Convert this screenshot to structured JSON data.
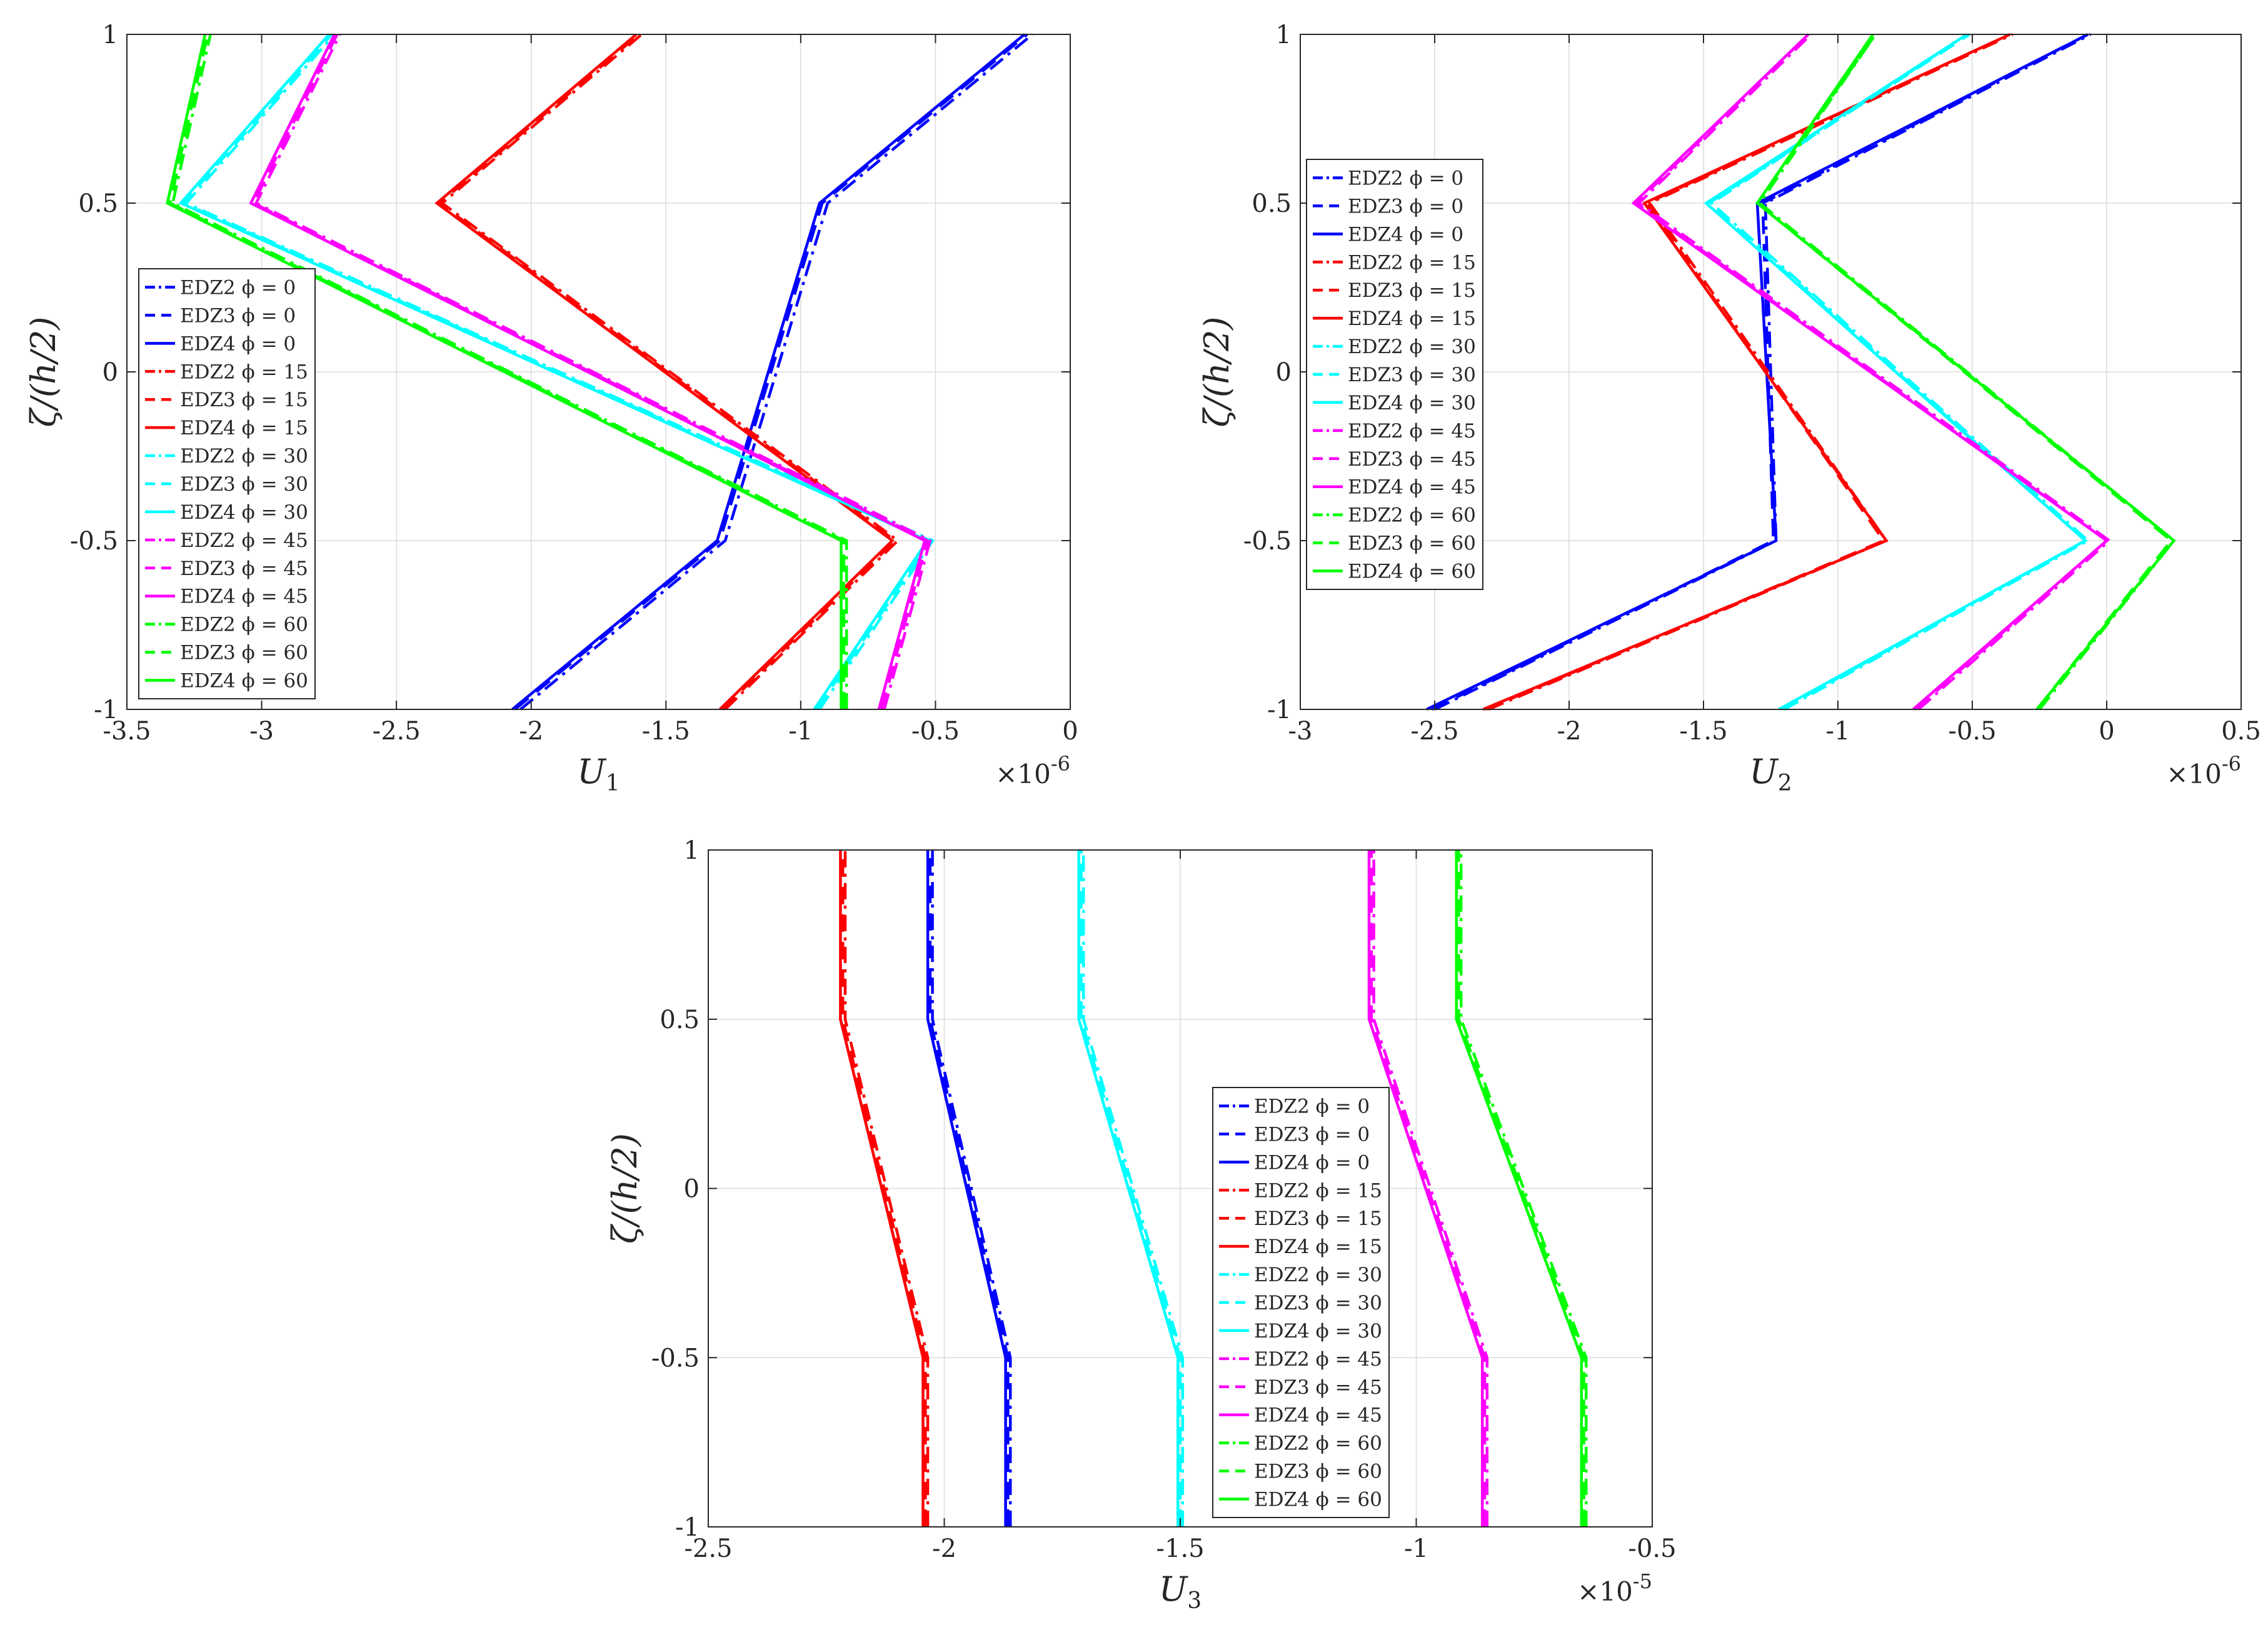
{
  "chart_data": [
    {
      "type": "line",
      "xlabel": "U",
      "xlabel_sub": "1",
      "ylabel": "ζ/(h/2)",
      "multiplier": "×10",
      "multiplier_exp": "-6",
      "xlim": [
        -3.5,
        0
      ],
      "ylim": [
        -1,
        1
      ],
      "xticks": [
        -3.5,
        -3,
        -2.5,
        -2,
        -1.5,
        -1,
        -0.5,
        0
      ],
      "xtick_labels": [
        "-3.5",
        "-3",
        "-2.5",
        "-2",
        "-1.5",
        "-1",
        "-0.5",
        "0"
      ],
      "yticks": [
        -1,
        -0.5,
        0,
        0.5,
        1
      ],
      "ytick_labels": [
        "-1",
        "-0.5",
        "0",
        "0.5",
        "1"
      ],
      "legend_position": "middle-left",
      "series": [
        {
          "name": "EDZ2 ϕ = 0",
          "color": "#0000ff",
          "dash": "dashdot",
          "x": [
            -2.04,
            -1.28,
            -0.9,
            -0.14
          ],
          "y": [
            -1,
            -0.5,
            0.5,
            1
          ]
        },
        {
          "name": "EDZ3 ϕ = 0",
          "color": "#0000ff",
          "dash": "dash",
          "x": [
            -2.06,
            -1.3,
            -0.92,
            -0.16
          ],
          "y": [
            -1,
            -0.5,
            0.5,
            1
          ]
        },
        {
          "name": "EDZ4 ϕ = 0",
          "color": "#0000ff",
          "dash": "solid",
          "x": [
            -2.07,
            -1.31,
            -0.93,
            -0.17
          ],
          "y": [
            -1,
            -0.5,
            0.5,
            1
          ]
        },
        {
          "name": "EDZ2 ϕ = 15",
          "color": "#ff0000",
          "dash": "dashdot",
          "x": [
            -1.28,
            -0.64,
            -2.33,
            -1.59
          ],
          "y": [
            -1,
            -0.5,
            0.5,
            1
          ]
        },
        {
          "name": "EDZ3 ϕ = 15",
          "color": "#ff0000",
          "dash": "dash",
          "x": [
            -1.29,
            -0.65,
            -2.34,
            -1.6
          ],
          "y": [
            -1,
            -0.5,
            0.5,
            1
          ]
        },
        {
          "name": "EDZ4 ϕ = 15",
          "color": "#ff0000",
          "dash": "solid",
          "x": [
            -1.3,
            -0.66,
            -2.35,
            -1.61
          ],
          "y": [
            -1,
            -0.5,
            0.5,
            1
          ]
        },
        {
          "name": "EDZ2 ϕ = 30",
          "color": "#00ffff",
          "dash": "dashdot",
          "x": [
            -0.93,
            -0.51,
            -3.28,
            -2.73
          ],
          "y": [
            -1,
            -0.5,
            0.5,
            1
          ]
        },
        {
          "name": "EDZ3 ϕ = 30",
          "color": "#00ffff",
          "dash": "dash",
          "x": [
            -0.94,
            -0.52,
            -3.29,
            -2.74
          ],
          "y": [
            -1,
            -0.5,
            0.5,
            1
          ]
        },
        {
          "name": "EDZ4 ϕ = 30",
          "color": "#00ffff",
          "dash": "solid",
          "x": [
            -0.95,
            -0.53,
            -3.3,
            -2.75
          ],
          "y": [
            -1,
            -0.5,
            0.5,
            1
          ]
        },
        {
          "name": "EDZ2 ϕ = 45",
          "color": "#ff00ff",
          "dash": "dashdot",
          "x": [
            -0.69,
            -0.52,
            -3.02,
            -2.71
          ],
          "y": [
            -1,
            -0.5,
            0.5,
            1
          ]
        },
        {
          "name": "EDZ3 ϕ = 45",
          "color": "#ff00ff",
          "dash": "dash",
          "x": [
            -0.7,
            -0.53,
            -3.03,
            -2.72
          ],
          "y": [
            -1,
            -0.5,
            0.5,
            1
          ]
        },
        {
          "name": "EDZ4 ϕ = 45",
          "color": "#ff00ff",
          "dash": "solid",
          "x": [
            -0.71,
            -0.54,
            -3.04,
            -2.73
          ],
          "y": [
            -1,
            -0.5,
            0.5,
            1
          ]
        },
        {
          "name": "EDZ2 ϕ = 60",
          "color": "#00ff00",
          "dash": "dashdot",
          "x": [
            -0.83,
            -0.83,
            -3.33,
            -3.19
          ],
          "y": [
            -1,
            -0.5,
            0.5,
            1
          ]
        },
        {
          "name": "EDZ3 ϕ = 60",
          "color": "#00ff00",
          "dash": "dash",
          "x": [
            -0.84,
            -0.84,
            -3.34,
            -3.2
          ],
          "y": [
            -1,
            -0.5,
            0.5,
            1
          ]
        },
        {
          "name": "EDZ4 ϕ = 60",
          "color": "#00ff00",
          "dash": "solid",
          "x": [
            -0.85,
            -0.85,
            -3.35,
            -3.21
          ],
          "y": [
            -1,
            -0.5,
            0.5,
            1
          ]
        }
      ]
    },
    {
      "type": "line",
      "xlabel": "U",
      "xlabel_sub": "2",
      "ylabel": "ζ/(h/2)",
      "multiplier": "×10",
      "multiplier_exp": "-6",
      "xlim": [
        -3,
        0.5
      ],
      "ylim": [
        -1,
        1
      ],
      "xticks": [
        -3,
        -2.5,
        -2,
        -1.5,
        -1,
        -0.5,
        0,
        0.5
      ],
      "xtick_labels": [
        "-3",
        "-2.5",
        "-2",
        "-1.5",
        "-1",
        "-0.5",
        "0",
        "0.5"
      ],
      "yticks": [
        -1,
        -0.5,
        0,
        0.5,
        1
      ],
      "ytick_labels": [
        "-1",
        "-0.5",
        "0",
        "0.5",
        "1"
      ],
      "legend_position": "top-left",
      "series": [
        {
          "name": "EDZ2 ϕ = 0",
          "color": "#0000ff",
          "dash": "dashdot",
          "x": [
            -2.5,
            -1.23,
            -1.27,
            -0.06
          ],
          "y": [
            -1,
            -0.5,
            0.5,
            1
          ]
        },
        {
          "name": "EDZ3 ϕ = 0",
          "color": "#0000ff",
          "dash": "dash",
          "x": [
            -2.51,
            -1.24,
            -1.28,
            -0.07
          ],
          "y": [
            -1,
            -0.5,
            0.5,
            1
          ]
        },
        {
          "name": "EDZ4 ϕ = 0",
          "color": "#0000ff",
          "dash": "solid",
          "x": [
            -2.53,
            -1.23,
            -1.3,
            -0.07
          ],
          "y": [
            -1,
            -0.5,
            0.5,
            1
          ]
        },
        {
          "name": "EDZ2 ϕ = 15",
          "color": "#ff0000",
          "dash": "dashdot",
          "x": [
            -2.3,
            -0.82,
            -1.7,
            -0.35
          ],
          "y": [
            -1,
            -0.5,
            0.5,
            1
          ]
        },
        {
          "name": "EDZ3 ϕ = 15",
          "color": "#ff0000",
          "dash": "dash",
          "x": [
            -2.31,
            -0.83,
            -1.71,
            -0.36
          ],
          "y": [
            -1,
            -0.5,
            0.5,
            1
          ]
        },
        {
          "name": "EDZ4 ϕ = 15",
          "color": "#ff0000",
          "dash": "solid",
          "x": [
            -2.32,
            -0.82,
            -1.72,
            -0.36
          ],
          "y": [
            -1,
            -0.5,
            0.5,
            1
          ]
        },
        {
          "name": "EDZ2 ϕ = 30",
          "color": "#00ffff",
          "dash": "dashdot",
          "x": [
            -1.2,
            -0.07,
            -1.47,
            -0.52
          ],
          "y": [
            -1,
            -0.5,
            0.5,
            1
          ]
        },
        {
          "name": "EDZ3 ϕ = 30",
          "color": "#00ffff",
          "dash": "dash",
          "x": [
            -1.21,
            -0.08,
            -1.48,
            -0.51
          ],
          "y": [
            -1,
            -0.5,
            0.5,
            1
          ]
        },
        {
          "name": "EDZ4 ϕ = 30",
          "color": "#00ffff",
          "dash": "solid",
          "x": [
            -1.22,
            -0.08,
            -1.49,
            -0.52
          ],
          "y": [
            -1,
            -0.5,
            0.5,
            1
          ]
        },
        {
          "name": "EDZ2 ϕ = 45",
          "color": "#ff00ff",
          "dash": "dashdot",
          "x": [
            -0.7,
            0.01,
            -1.74,
            -1.1
          ],
          "y": [
            -1,
            -0.5,
            0.5,
            1
          ]
        },
        {
          "name": "EDZ3 ϕ = 45",
          "color": "#ff00ff",
          "dash": "dash",
          "x": [
            -0.71,
            0.0,
            -1.75,
            -1.11
          ],
          "y": [
            -1,
            -0.5,
            0.5,
            1
          ]
        },
        {
          "name": "EDZ4 ϕ = 45",
          "color": "#ff00ff",
          "dash": "solid",
          "x": [
            -0.72,
            0.0,
            -1.76,
            -1.11
          ],
          "y": [
            -1,
            -0.5,
            0.5,
            1
          ]
        },
        {
          "name": "EDZ2 ϕ = 60",
          "color": "#00ff00",
          "dash": "dashdot",
          "x": [
            -0.25,
            0.25,
            -1.29,
            -0.86
          ],
          "y": [
            -1,
            -0.5,
            0.5,
            1
          ]
        },
        {
          "name": "EDZ3 ϕ = 60",
          "color": "#00ff00",
          "dash": "dash",
          "x": [
            -0.26,
            0.24,
            -1.3,
            -0.86
          ],
          "y": [
            -1,
            -0.5,
            0.5,
            1
          ]
        },
        {
          "name": "EDZ4 ϕ = 60",
          "color": "#00ff00",
          "dash": "solid",
          "x": [
            -0.26,
            0.25,
            -1.3,
            -0.87
          ],
          "y": [
            -1,
            -0.5,
            0.5,
            1
          ]
        }
      ]
    },
    {
      "type": "line",
      "xlabel": "U",
      "xlabel_sub": "3",
      "ylabel": "ζ/(h/2)",
      "multiplier": "×10",
      "multiplier_exp": "-5",
      "xlim": [
        -2.5,
        -0.5
      ],
      "ylim": [
        -1,
        1
      ],
      "xticks": [
        -2.5,
        -2,
        -1.5,
        -1,
        -0.5
      ],
      "xtick_labels": [
        "-2.5",
        "-2",
        "-1.5",
        "-1",
        "-0.5"
      ],
      "yticks": [
        -1,
        -0.5,
        0,
        0.5,
        1
      ],
      "ytick_labels": [
        "-1",
        "-0.5",
        "0",
        "0.5",
        "1"
      ],
      "legend_position": "center",
      "series": [
        {
          "name": "EDZ2 ϕ = 0",
          "color": "#0000ff",
          "dash": "dashdot",
          "x": [
            -1.86,
            -1.86,
            -2.025,
            -2.025
          ],
          "y": [
            -1,
            -0.5,
            0.5,
            1
          ]
        },
        {
          "name": "EDZ3 ϕ = 0",
          "color": "#0000ff",
          "dash": "dash",
          "x": [
            -1.865,
            -1.865,
            -2.03,
            -2.03
          ],
          "y": [
            -1,
            -0.5,
            0.5,
            1
          ]
        },
        {
          "name": "EDZ4 ϕ = 0",
          "color": "#0000ff",
          "dash": "solid",
          "x": [
            -1.87,
            -1.87,
            -2.035,
            -2.035
          ],
          "y": [
            -1,
            -0.5,
            0.5,
            1
          ]
        },
        {
          "name": "EDZ2 ϕ = 15",
          "color": "#ff0000",
          "dash": "dashdot",
          "x": [
            -2.035,
            -2.035,
            -2.21,
            -2.21
          ],
          "y": [
            -1,
            -0.5,
            0.5,
            1
          ]
        },
        {
          "name": "EDZ3 ϕ = 15",
          "color": "#ff0000",
          "dash": "dash",
          "x": [
            -2.04,
            -2.04,
            -2.215,
            -2.215
          ],
          "y": [
            -1,
            -0.5,
            0.5,
            1
          ]
        },
        {
          "name": "EDZ4 ϕ = 15",
          "color": "#ff0000",
          "dash": "solid",
          "x": [
            -2.045,
            -2.045,
            -2.22,
            -2.22
          ],
          "y": [
            -1,
            -0.5,
            0.5,
            1
          ]
        },
        {
          "name": "EDZ2 ϕ = 30",
          "color": "#00ffff",
          "dash": "dashdot",
          "x": [
            -1.495,
            -1.495,
            -1.705,
            -1.705
          ],
          "y": [
            -1,
            -0.5,
            0.5,
            1
          ]
        },
        {
          "name": "EDZ3 ϕ = 30",
          "color": "#00ffff",
          "dash": "dash",
          "x": [
            -1.5,
            -1.5,
            -1.71,
            -1.71
          ],
          "y": [
            -1,
            -0.5,
            0.5,
            1
          ]
        },
        {
          "name": "EDZ4 ϕ = 30",
          "color": "#00ffff",
          "dash": "solid",
          "x": [
            -1.505,
            -1.505,
            -1.715,
            -1.715
          ],
          "y": [
            -1,
            -0.5,
            0.5,
            1
          ]
        },
        {
          "name": "EDZ2 ϕ = 45",
          "color": "#ff00ff",
          "dash": "dashdot",
          "x": [
            -0.85,
            -0.85,
            -1.09,
            -1.09
          ],
          "y": [
            -1,
            -0.5,
            0.5,
            1
          ]
        },
        {
          "name": "EDZ3 ϕ = 45",
          "color": "#ff00ff",
          "dash": "dash",
          "x": [
            -0.855,
            -0.855,
            -1.095,
            -1.095
          ],
          "y": [
            -1,
            -0.5,
            0.5,
            1
          ]
        },
        {
          "name": "EDZ4 ϕ = 45",
          "color": "#ff00ff",
          "dash": "solid",
          "x": [
            -0.86,
            -0.86,
            -1.1,
            -1.1
          ],
          "y": [
            -1,
            -0.5,
            0.5,
            1
          ]
        },
        {
          "name": "EDZ2 ϕ = 60",
          "color": "#00ff00",
          "dash": "dashdot",
          "x": [
            -0.64,
            -0.64,
            -0.905,
            -0.905
          ],
          "y": [
            -1,
            -0.5,
            0.5,
            1
          ]
        },
        {
          "name": "EDZ3 ϕ = 60",
          "color": "#00ff00",
          "dash": "dash",
          "x": [
            -0.645,
            -0.645,
            -0.91,
            -0.91
          ],
          "y": [
            -1,
            -0.5,
            0.5,
            1
          ]
        },
        {
          "name": "EDZ4 ϕ = 60",
          "color": "#00ff00",
          "dash": "solid",
          "x": [
            -0.65,
            -0.65,
            -0.915,
            -0.915
          ],
          "y": [
            -1,
            -0.5,
            0.5,
            1
          ]
        }
      ]
    }
  ]
}
